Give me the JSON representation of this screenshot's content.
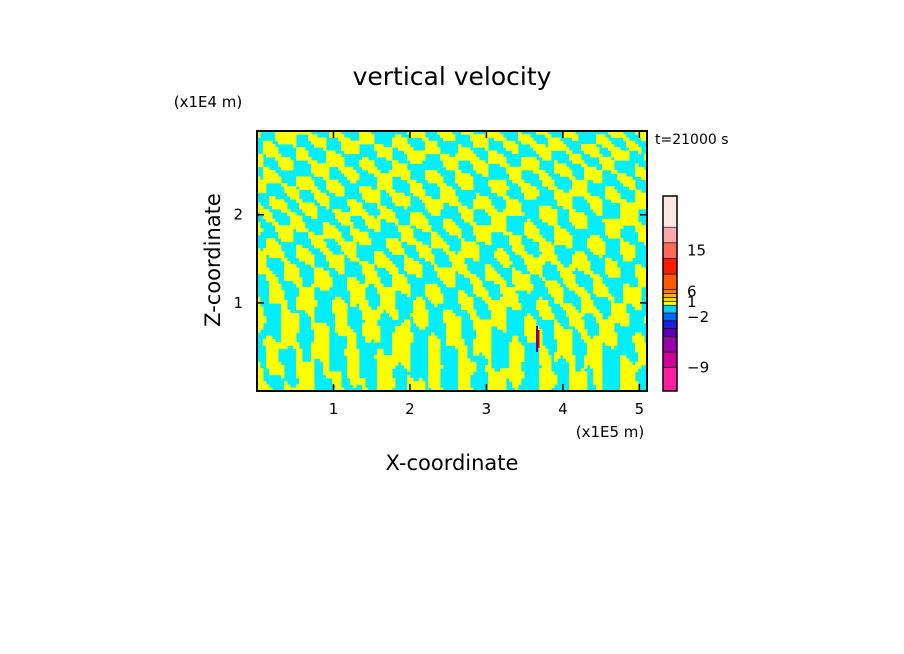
{
  "chart_data": {
    "type": "heatmap",
    "title": "vertical velocity",
    "xlabel": "X-coordinate",
    "ylabel": "Z-coordinate",
    "x_unit": "(x1E5 m)",
    "y_unit": "(x1E4 m)",
    "time_label": "t=21000 s",
    "xlim": [
      0,
      5.1
    ],
    "ylim": [
      0,
      2.95
    ],
    "x_ticks": [
      {
        "value": 1,
        "label": "1"
      },
      {
        "value": 2,
        "label": "2"
      },
      {
        "value": 3,
        "label": "3"
      },
      {
        "value": 4,
        "label": "4"
      },
      {
        "value": 5,
        "label": "5"
      }
    ],
    "y_ticks": [
      {
        "value": 1,
        "label": "1"
      },
      {
        "value": 2,
        "label": "2"
      }
    ],
    "field_colors": {
      "positive": "#ffff00",
      "negative": "#00eeff",
      "strong_updraft": "#cc0000",
      "strong_downdraft": "#6600aa"
    },
    "colorbar": {
      "bands": [
        "#ff1ea0",
        "#cc0099",
        "#9900aa",
        "#5a00b4",
        "#1e1edc",
        "#0066ff",
        "#00ccff",
        "#ffff00",
        "#ffd400",
        "#ffb000",
        "#ff7a00",
        "#ff5a00",
        "#ff1a00",
        "#ff6a5a",
        "#ffaaaa",
        "#ffe8e4"
      ],
      "band_weights": [
        3,
        2,
        2,
        1,
        1,
        1,
        1,
        0.5,
        0.5,
        0.5,
        0.5,
        2,
        2,
        2,
        2,
        4
      ],
      "labels": [
        {
          "text": "15",
          "band": 13.5
        },
        {
          "text": "6",
          "band": 10.5
        },
        {
          "text": "1",
          "band": 7.8
        },
        {
          "text": "−2",
          "band": 5.5
        },
        {
          "text": "−9",
          "band": 1.0
        }
      ]
    }
  }
}
